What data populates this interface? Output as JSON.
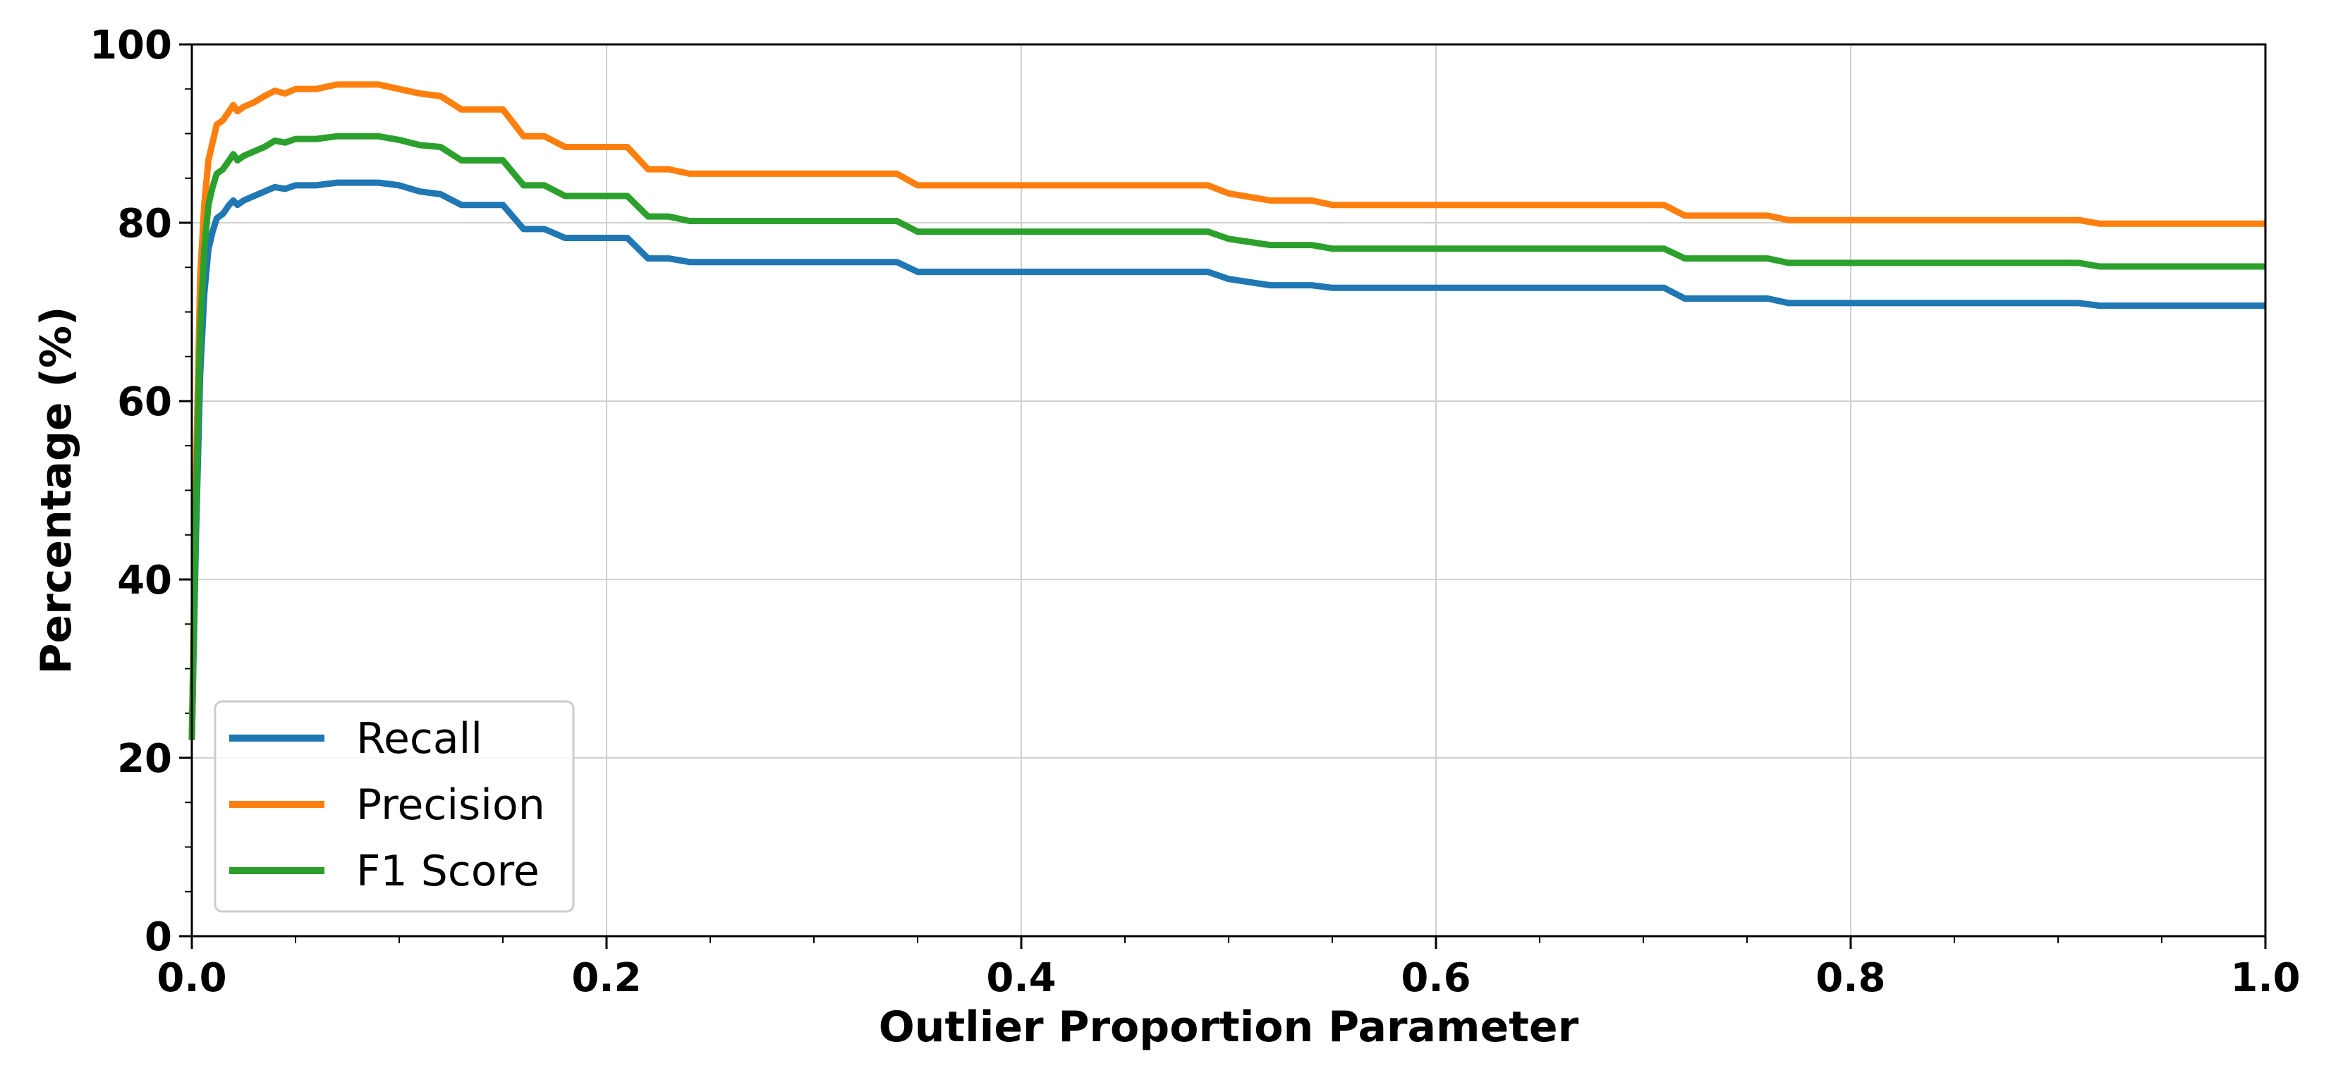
{
  "chart_data": {
    "type": "line",
    "title": "",
    "xlabel": "Outlier Proportion Parameter",
    "ylabel": "Percentage (%)",
    "xlim": [
      0.0,
      1.0
    ],
    "ylim": [
      0,
      100
    ],
    "xticks": [
      0.0,
      0.2,
      0.4,
      0.6,
      0.8,
      1.0
    ],
    "xtick_labels": [
      "0.0",
      "0.2",
      "0.4",
      "0.6",
      "0.8",
      "1.0"
    ],
    "yticks": [
      0,
      20,
      40,
      60,
      80,
      100
    ],
    "ytick_labels": [
      "0",
      "20",
      "40",
      "60",
      "80",
      "100"
    ],
    "grid": true,
    "legend": "lower-left",
    "series": [
      {
        "name": "Recall",
        "color": "#1f77b4",
        "points": [
          [
            0.0,
            22
          ],
          [
            0.002,
            45
          ],
          [
            0.004,
            63
          ],
          [
            0.006,
            72
          ],
          [
            0.008,
            77
          ],
          [
            0.01,
            79
          ],
          [
            0.012,
            80.5
          ],
          [
            0.015,
            81
          ],
          [
            0.018,
            82
          ],
          [
            0.02,
            82.5
          ],
          [
            0.022,
            82
          ],
          [
            0.025,
            82.5
          ],
          [
            0.03,
            83
          ],
          [
            0.035,
            83.5
          ],
          [
            0.04,
            84
          ],
          [
            0.045,
            83.8
          ],
          [
            0.05,
            84.2
          ],
          [
            0.06,
            84.2
          ],
          [
            0.07,
            84.5
          ],
          [
            0.09,
            84.5
          ],
          [
            0.1,
            84.2
          ],
          [
            0.11,
            83.5
          ],
          [
            0.12,
            83.2
          ],
          [
            0.13,
            82
          ],
          [
            0.14,
            82
          ],
          [
            0.15,
            82
          ],
          [
            0.16,
            79.3
          ],
          [
            0.17,
            79.3
          ],
          [
            0.18,
            78.3
          ],
          [
            0.19,
            78.3
          ],
          [
            0.21,
            78.3
          ],
          [
            0.22,
            76
          ],
          [
            0.23,
            76
          ],
          [
            0.24,
            75.6
          ],
          [
            0.34,
            75.6
          ],
          [
            0.35,
            74.5
          ],
          [
            0.49,
            74.5
          ],
          [
            0.5,
            73.7
          ],
          [
            0.52,
            73
          ],
          [
            0.54,
            73
          ],
          [
            0.55,
            72.7
          ],
          [
            0.71,
            72.7
          ],
          [
            0.72,
            71.5
          ],
          [
            0.76,
            71.5
          ],
          [
            0.77,
            71
          ],
          [
            0.91,
            71
          ],
          [
            0.92,
            70.7
          ],
          [
            1.0,
            70.7
          ]
        ]
      },
      {
        "name": "Precision",
        "color": "#ff7f0e",
        "points": [
          [
            0.0,
            22
          ],
          [
            0.002,
            52
          ],
          [
            0.004,
            74
          ],
          [
            0.006,
            82
          ],
          [
            0.008,
            87
          ],
          [
            0.01,
            89
          ],
          [
            0.012,
            91
          ],
          [
            0.015,
            91.5
          ],
          [
            0.018,
            92.5
          ],
          [
            0.02,
            93.2
          ],
          [
            0.022,
            92.5
          ],
          [
            0.025,
            93
          ],
          [
            0.03,
            93.5
          ],
          [
            0.035,
            94.2
          ],
          [
            0.04,
            94.8
          ],
          [
            0.045,
            94.5
          ],
          [
            0.05,
            95
          ],
          [
            0.06,
            95
          ],
          [
            0.07,
            95.5
          ],
          [
            0.09,
            95.5
          ],
          [
            0.1,
            95
          ],
          [
            0.11,
            94.5
          ],
          [
            0.12,
            94.2
          ],
          [
            0.13,
            92.7
          ],
          [
            0.14,
            92.7
          ],
          [
            0.15,
            92.7
          ],
          [
            0.16,
            89.7
          ],
          [
            0.17,
            89.7
          ],
          [
            0.18,
            88.5
          ],
          [
            0.19,
            88.5
          ],
          [
            0.21,
            88.5
          ],
          [
            0.22,
            86
          ],
          [
            0.23,
            86
          ],
          [
            0.24,
            85.5
          ],
          [
            0.34,
            85.5
          ],
          [
            0.35,
            84.2
          ],
          [
            0.49,
            84.2
          ],
          [
            0.5,
            83.3
          ],
          [
            0.52,
            82.5
          ],
          [
            0.54,
            82.5
          ],
          [
            0.55,
            82
          ],
          [
            0.71,
            82
          ],
          [
            0.72,
            80.8
          ],
          [
            0.76,
            80.8
          ],
          [
            0.77,
            80.3
          ],
          [
            0.91,
            80.3
          ],
          [
            0.92,
            79.9
          ],
          [
            1.0,
            79.9
          ]
        ]
      },
      {
        "name": "F1 Score",
        "color": "#2ca02c",
        "points": [
          [
            0.0,
            22
          ],
          [
            0.002,
            48
          ],
          [
            0.004,
            68
          ],
          [
            0.006,
            77
          ],
          [
            0.008,
            82
          ],
          [
            0.01,
            84
          ],
          [
            0.012,
            85.5
          ],
          [
            0.015,
            86
          ],
          [
            0.018,
            87
          ],
          [
            0.02,
            87.7
          ],
          [
            0.022,
            87
          ],
          [
            0.025,
            87.5
          ],
          [
            0.03,
            88
          ],
          [
            0.035,
            88.5
          ],
          [
            0.04,
            89.2
          ],
          [
            0.045,
            89
          ],
          [
            0.05,
            89.4
          ],
          [
            0.06,
            89.4
          ],
          [
            0.07,
            89.7
          ],
          [
            0.09,
            89.7
          ],
          [
            0.1,
            89.3
          ],
          [
            0.11,
            88.7
          ],
          [
            0.12,
            88.5
          ],
          [
            0.13,
            87
          ],
          [
            0.14,
            87
          ],
          [
            0.15,
            87
          ],
          [
            0.16,
            84.2
          ],
          [
            0.17,
            84.2
          ],
          [
            0.18,
            83
          ],
          [
            0.19,
            83
          ],
          [
            0.21,
            83
          ],
          [
            0.22,
            80.7
          ],
          [
            0.23,
            80.7
          ],
          [
            0.24,
            80.2
          ],
          [
            0.34,
            80.2
          ],
          [
            0.35,
            79
          ],
          [
            0.49,
            79
          ],
          [
            0.5,
            78.2
          ],
          [
            0.52,
            77.5
          ],
          [
            0.54,
            77.5
          ],
          [
            0.55,
            77.1
          ],
          [
            0.71,
            77.1
          ],
          [
            0.72,
            76
          ],
          [
            0.76,
            76
          ],
          [
            0.77,
            75.5
          ],
          [
            0.91,
            75.5
          ],
          [
            0.92,
            75.1
          ],
          [
            1.0,
            75.1
          ]
        ]
      }
    ]
  }
}
